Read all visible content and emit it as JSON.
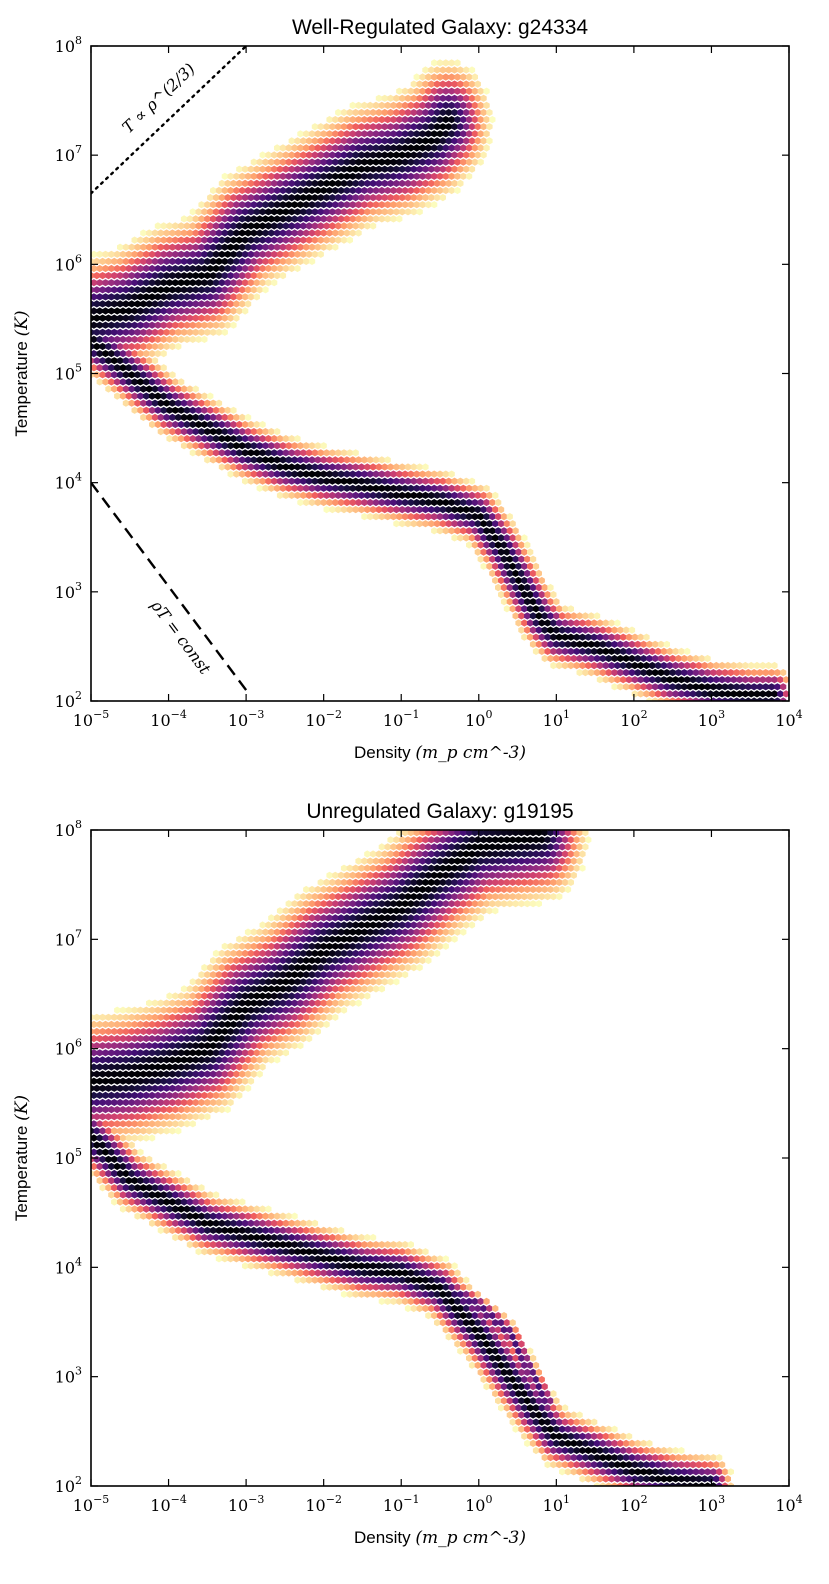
{
  "chart_data": [
    {
      "type": "hexbin",
      "title": "Well-Regulated Galaxy: g24334",
      "xlabel": "Density",
      "xlabel_unit": "(m_p cm^-3)",
      "ylabel": "Temperature",
      "ylabel_unit": "(K)",
      "xscale": "log",
      "yscale": "log",
      "xlim": [
        1e-05,
        10000.0
      ],
      "ylim": [
        100.0,
        100000000.0
      ],
      "x_ticks": [
        -5,
        -4,
        -3,
        -2,
        -1,
        0,
        1,
        2,
        3,
        4
      ],
      "y_ticks": [
        2,
        3,
        4,
        5,
        6,
        7,
        8
      ],
      "colormap": "magma_r",
      "density_ridges": [
        {
          "name": "hot halo ridge",
          "points": [
            [
              -5,
              5.5
            ],
            [
              -4.5,
              5.6
            ],
            [
              -4,
              5.8
            ],
            [
              -3.5,
              5.9
            ],
            [
              -3,
              6.3
            ],
            [
              -2.5,
              6.5
            ],
            [
              -2,
              6.7
            ],
            [
              -1.5,
              6.9
            ],
            [
              -1,
              7.0
            ],
            [
              -0.6,
              7.15
            ],
            [
              -0.4,
              7.3
            ]
          ],
          "width": 0.28,
          "peak": 1.0
        },
        {
          "name": "cool branch ridge",
          "points": [
            [
              -5,
              5.3
            ],
            [
              -4.5,
              5.0
            ],
            [
              -4,
              4.7
            ],
            [
              -3.5,
              4.5
            ],
            [
              -3,
              4.3
            ],
            [
              -2.5,
              4.15
            ],
            [
              -2,
              4.05
            ],
            [
              -1.5,
              3.98
            ],
            [
              -1,
              3.9
            ],
            [
              -0.5,
              3.83
            ],
            [
              0,
              3.7
            ],
            [
              0.3,
              3.4
            ],
            [
              0.6,
              3.0
            ],
            [
              0.8,
              2.75
            ],
            [
              1.0,
              2.6
            ],
            [
              1.5,
              2.5
            ],
            [
              2,
              2.35
            ],
            [
              2.5,
              2.2
            ],
            [
              3,
              2.1
            ],
            [
              3.5,
              2.05
            ],
            [
              3.8,
              2.05
            ]
          ],
          "width": 0.14,
          "peak": 1.0
        }
      ],
      "annotations": [
        {
          "label": "T ∝ ρ^(2/3)",
          "style": "dotted",
          "x": [
            -5,
            -3
          ],
          "y": [
            6.65,
            8.0
          ]
        },
        {
          "label": "ρT = const",
          "style": "dashed",
          "x": [
            -5,
            -3
          ],
          "y": [
            4.0,
            2.1
          ]
        }
      ]
    },
    {
      "type": "hexbin",
      "title": "Unregulated Galaxy: g19195",
      "xlabel": "Density",
      "xlabel_unit": "(m_p cm^-3)",
      "ylabel": "Temperature",
      "ylabel_unit": "(K)",
      "xscale": "log",
      "yscale": "log",
      "xlim": [
        1e-05,
        10000.0
      ],
      "ylim": [
        100.0,
        100000000.0
      ],
      "x_ticks": [
        -5,
        -4,
        -3,
        -2,
        -1,
        0,
        1,
        2,
        3,
        4
      ],
      "y_ticks": [
        2,
        3,
        4,
        5,
        6,
        7,
        8
      ],
      "colormap": "magma_r",
      "density_ridges": [
        {
          "name": "hot halo ridge",
          "points": [
            [
              -5,
              5.7
            ],
            [
              -4.5,
              5.75
            ],
            [
              -4,
              5.85
            ],
            [
              -3.5,
              6.0
            ],
            [
              -3,
              6.4
            ],
            [
              -2.5,
              6.6
            ],
            [
              -2,
              6.9
            ],
            [
              -1.5,
              7.1
            ],
            [
              -1,
              7.3
            ],
            [
              -0.5,
              7.6
            ],
            [
              0,
              7.85
            ],
            [
              0.8,
              7.95
            ]
          ],
          "width": 0.3,
          "peak": 1.0
        },
        {
          "name": "cool branch ridge",
          "points": [
            [
              -5,
              5.2
            ],
            [
              -4.5,
              4.8
            ],
            [
              -4,
              4.6
            ],
            [
              -3.5,
              4.4
            ],
            [
              -3,
              4.3
            ],
            [
              -2.5,
              4.2
            ],
            [
              -2,
              4.1
            ],
            [
              -1.5,
              4.0
            ],
            [
              -1,
              3.95
            ],
            [
              -0.5,
              3.8
            ],
            [
              0,
              3.4
            ],
            [
              0.4,
              3.0
            ],
            [
              0.7,
              2.7
            ],
            [
              1.0,
              2.45
            ],
            [
              1.5,
              2.3
            ],
            [
              2,
              2.15
            ],
            [
              2.5,
              2.05
            ],
            [
              3,
              2.0
            ]
          ],
          "width": 0.14,
          "peak": 1.0
        },
        {
          "name": "secondary cooling track",
          "points": [
            [
              -1,
              3.95
            ],
            [
              -0.5,
              3.85
            ],
            [
              0,
              3.65
            ],
            [
              0.4,
              3.4
            ],
            [
              0.7,
              3.0
            ],
            [
              0.9,
              2.75
            ]
          ],
          "width": 0.06,
          "peak": 0.8
        }
      ],
      "annotations": []
    }
  ],
  "colors": {
    "background": "#ffffff",
    "axes": "#000000",
    "cmap_stops": [
      "#fcfdbf",
      "#feca8d",
      "#fe9f6d",
      "#f1605d",
      "#cd4071",
      "#9e2f7f",
      "#721f81",
      "#440f76",
      "#1d1147",
      "#000004"
    ]
  }
}
